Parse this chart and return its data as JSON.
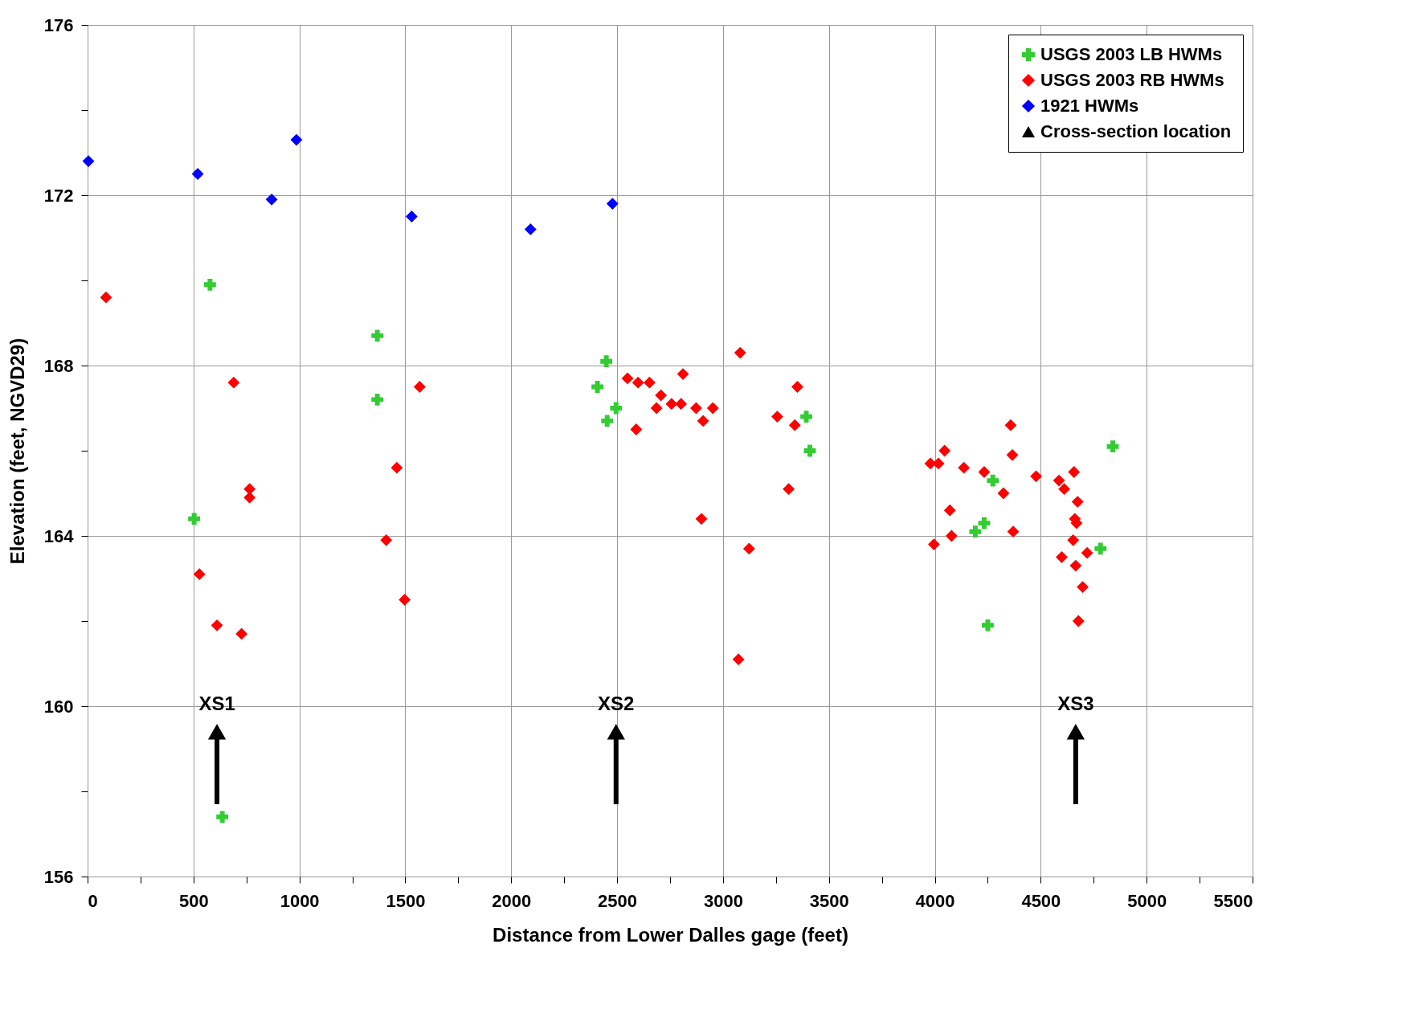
{
  "chart_data": {
    "type": "scatter",
    "xlabel": "Distance from Lower Dalles gage (feet)",
    "ylabel": "Elevation (feet, NGVD29)",
    "xlim": [
      0,
      5500
    ],
    "ylim": [
      156,
      176
    ],
    "xticks": [
      0,
      {
        "value": 250,
        "label": null
      },
      500,
      {
        "value": 750,
        "label": null
      },
      1000,
      {
        "value": 1250,
        "label": null
      },
      1500,
      {
        "value": 1750,
        "label": null
      },
      2000,
      {
        "value": 2250,
        "label": null
      },
      2500,
      {
        "value": 2750,
        "label": null
      },
      3000,
      {
        "value": 3250,
        "label": null
      },
      3500,
      {
        "value": 3750,
        "label": null
      },
      4000,
      {
        "value": 4250,
        "label": null
      },
      4500,
      {
        "value": 4750,
        "label": null
      },
      5000,
      {
        "value": 5250,
        "label": null
      },
      5500
    ],
    "yticks": [
      156,
      {
        "value": 158,
        "label": null
      },
      160,
      {
        "value": 162,
        "label": null
      },
      164,
      {
        "value": 166,
        "label": null
      },
      168,
      {
        "value": 170,
        "label": null
      },
      172,
      {
        "value": 174,
        "label": null
      },
      176
    ],
    "grid": true,
    "legend": "top right",
    "series": [
      {
        "name": "USGS 2003 LB HWMs",
        "color": "#33cc33",
        "marker": "cross",
        "x": [
          578,
          503,
          636,
          1368,
          1368,
          2449,
          2407,
          2495,
          2453,
          3393,
          3410,
          4274,
          4191,
          4233,
          4250,
          4782,
          4840
        ],
        "values": [
          169.9,
          164.4,
          157.4,
          168.7,
          167.2,
          168.1,
          167.5,
          167.0,
          166.7,
          166.8,
          166.0,
          165.3,
          164.1,
          164.3,
          161.9,
          163.7,
          166.1
        ]
      },
      {
        "name": "USGS 2003 RB HWMs",
        "color": "#ff0000",
        "marker": "diamond",
        "x": [
          87,
          690,
          528,
          611,
          727,
          765,
          765,
          1568,
          1460,
          1410,
          1497,
          2549,
          2599,
          2590,
          2653,
          2707,
          2686,
          2757,
          2811,
          2802,
          2873,
          2906,
          2952,
          3081,
          2898,
          3123,
          3073,
          3256,
          3339,
          3351,
          3310,
          3979,
          4046,
          4017,
          3996,
          4071,
          4079,
          4137,
          4233,
          4324,
          4358,
          4366,
          4370,
          4478,
          4586,
          4611,
          4657,
          4674,
          4661,
          4669,
          4653,
          4599,
          4665,
          4719,
          4698,
          4678
        ],
        "values": [
          169.6,
          167.6,
          163.1,
          161.9,
          161.7,
          165.1,
          164.9,
          167.5,
          165.6,
          163.9,
          162.5,
          167.7,
          167.6,
          166.5,
          167.6,
          167.3,
          167.0,
          167.1,
          167.8,
          167.1,
          167.0,
          166.7,
          167.0,
          168.3,
          164.4,
          163.7,
          161.1,
          166.8,
          166.6,
          167.5,
          165.1,
          165.7,
          166.0,
          165.7,
          163.8,
          164.6,
          164.0,
          165.6,
          165.5,
          165.0,
          166.6,
          165.9,
          164.1,
          165.4,
          165.3,
          165.1,
          165.5,
          164.8,
          164.4,
          164.3,
          163.9,
          163.5,
          163.3,
          163.6,
          162.8,
          162.0
        ]
      },
      {
        "name": "1921 HWMs",
        "color": "#0000ff",
        "marker": "diamond",
        "x": [
          4,
          520,
          869,
          986,
          1530,
          2091,
          2478
        ],
        "values": [
          172.8,
          172.5,
          171.9,
          173.3,
          171.5,
          171.2,
          171.8
        ]
      },
      {
        "name": "Cross-section location",
        "color": "#000000",
        "marker": "triangle",
        "x": [
          611,
          2495,
          4665
        ],
        "values": [
          159.4,
          159.4,
          159.4
        ],
        "errors": [
          [
            157.7,
            159.4
          ],
          [
            157.7,
            159.4
          ],
          [
            157.7,
            159.4
          ]
        ]
      }
    ],
    "annotations": [
      "XS1",
      "XS2",
      "XS3"
    ]
  }
}
